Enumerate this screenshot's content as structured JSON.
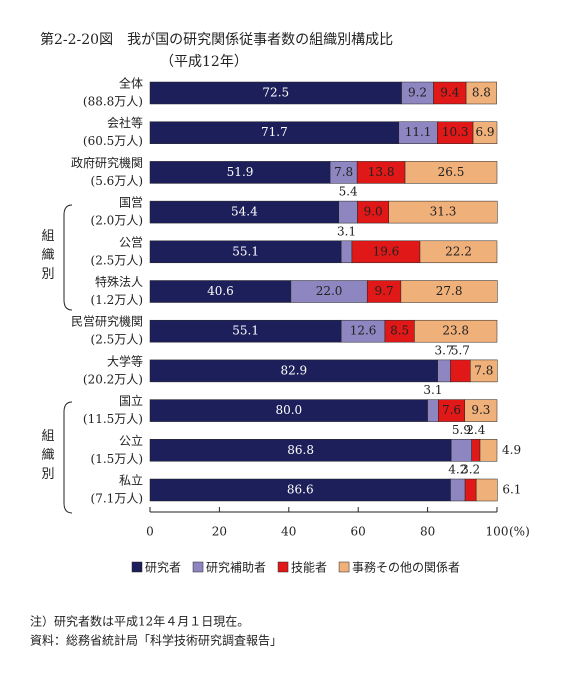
{
  "chart_data": {
    "type": "stacked-bar-horizontal",
    "title": "第2-2-20図　我が国の研究関係従事者数の組織別構成比",
    "subtitle": "（平成12年）",
    "categories": [
      "全体",
      "会社等",
      "政府研究機関",
      "国営",
      "公営",
      "特殊法人",
      "民営研究機関",
      "大学等",
      "国立",
      "公立",
      "私立"
    ],
    "category_sublabels": [
      "(88.8万人)",
      "(60.5万人)",
      "(5.6万人)",
      "(2.0万人)",
      "(2.5万人)",
      "(1.2万人)",
      "(2.5万人)",
      "(20.2万人)",
      "(11.5万人)",
      "(1.5万人)",
      "(7.1万人)"
    ],
    "group_labels": [
      "組織別",
      "組織別"
    ],
    "series": [
      {
        "name": "研究者",
        "color": "#1c1f5a",
        "values": [
          72.5,
          71.7,
          51.9,
          54.4,
          55.1,
          40.6,
          55.1,
          82.9,
          80.0,
          86.8,
          86.6
        ],
        "value_labels": [
          "72.5",
          "71.7",
          "51.9",
          "54.4",
          "55.1",
          "40.6",
          "55.1",
          "82.9",
          "80.0",
          "86.8",
          "86.6"
        ]
      },
      {
        "name": "研究補助者",
        "color": "#8e86c0",
        "values": [
          9.2,
          11.1,
          7.8,
          5.4,
          3.1,
          22.0,
          12.6,
          3.7,
          3.1,
          5.9,
          4.2
        ],
        "value_labels": [
          "9.2",
          "11.1",
          "7.8",
          "5.4",
          "3.1",
          "22.0",
          "12.6",
          "3.7",
          "3.1",
          "5.9",
          "4.2"
        ]
      },
      {
        "name": "技能者",
        "color": "#e01818",
        "values": [
          9.4,
          10.3,
          13.8,
          9.0,
          19.6,
          9.7,
          8.5,
          5.7,
          7.6,
          2.4,
          3.2
        ],
        "value_labels": [
          "9.4",
          "10.3",
          "13.8",
          "9.0",
          "19.6",
          "9.7",
          "8.5",
          "5.7",
          "7.6",
          "2.4",
          "3.2"
        ]
      },
      {
        "name": "事務その他の関係者",
        "color": "#f0b07a",
        "values": [
          8.8,
          6.9,
          26.5,
          31.3,
          22.2,
          27.8,
          23.8,
          7.8,
          9.3,
          4.9,
          6.1
        ],
        "value_labels": [
          "8.8",
          "6.9",
          "26.5",
          "31.3",
          "22.2",
          "27.8",
          "23.8",
          "7.8",
          "9.3",
          "4.9",
          "6.1"
        ]
      }
    ],
    "xlim": [
      0,
      100
    ],
    "xticks": [
      0,
      20,
      40,
      60,
      80,
      100
    ],
    "x_unit": "(%)",
    "notes": [
      "注）研究者数は平成12年４月１日現在。",
      "資料：総務省統計局「科学技術研究調査報告」"
    ]
  }
}
